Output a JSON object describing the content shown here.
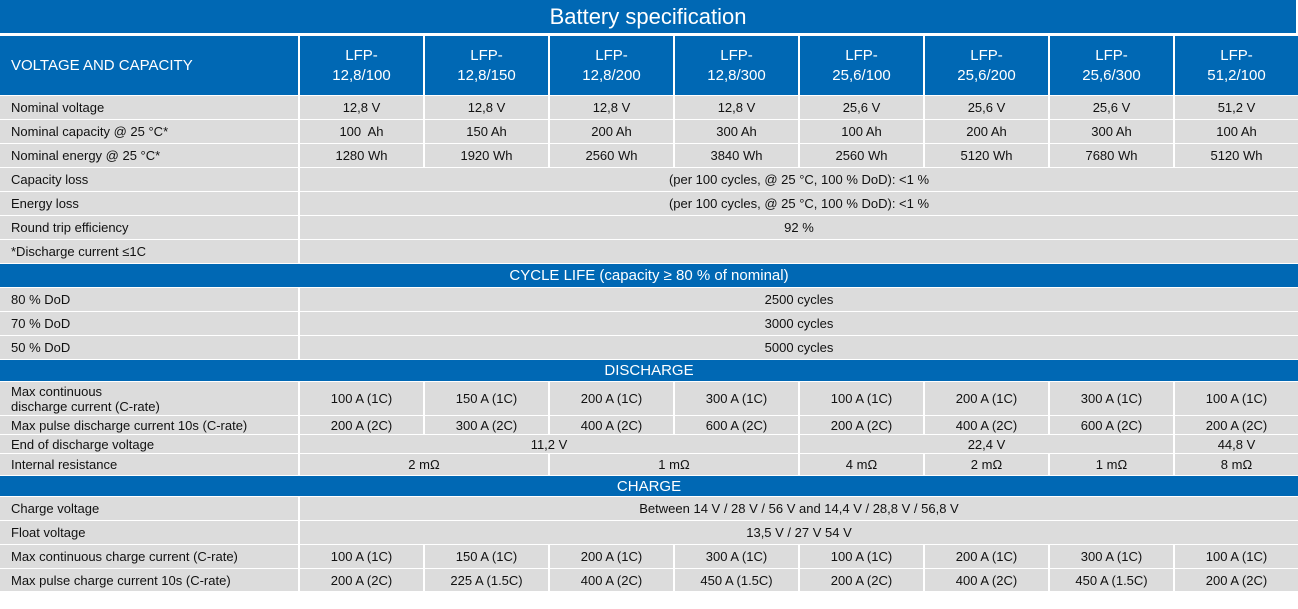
{
  "title": "Battery specification",
  "header": {
    "label": "VOLTAGE AND CAPACITY",
    "models_line1": [
      "LFP-",
      "LFP-",
      "LFP-",
      "LFP-",
      "LFP-",
      "LFP-",
      "LFP-",
      "LFP-"
    ],
    "models_line2": [
      "12,8/100",
      "12,8/150",
      "12,8/200",
      "12,8/300",
      "25,6/100",
      "25,6/200",
      "25,6/300",
      "51,2/100"
    ]
  },
  "voltage_capacity": {
    "nominal_voltage": {
      "label": "Nominal voltage",
      "values": [
        "12,8 V",
        "12,8 V",
        "12,8 V",
        "12,8 V",
        "25,6 V",
        "25,6 V",
        "25,6 V",
        "51,2 V"
      ]
    },
    "nominal_capacity": {
      "label": "Nominal capacity @ 25 °C*",
      "values": [
        "100  Ah",
        "150 Ah",
        "200 Ah",
        "300 Ah",
        "100 Ah",
        "200 Ah",
        "300 Ah",
        "100 Ah"
      ]
    },
    "nominal_energy": {
      "label": "Nominal energy @ 25 °C*",
      "values": [
        "1280 Wh",
        "1920 Wh",
        "2560 Wh",
        "3840 Wh",
        "2560 Wh",
        "5120 Wh",
        "7680 Wh",
        "5120 Wh"
      ]
    },
    "capacity_loss": {
      "label": "Capacity loss",
      "value": "(per 100 cycles, @ 25 °C, 100 % DoD): <1 %"
    },
    "energy_loss": {
      "label": "Energy loss",
      "value": "(per 100 cycles, @ 25 °C, 100 % DoD): <1 %"
    },
    "round_trip": {
      "label": "Round trip efficiency",
      "value": "92 %"
    },
    "footnote": "*Discharge current ≤1C"
  },
  "cycle_life": {
    "heading": "CYCLE LIFE (capacity ≥ 80 % of nominal)",
    "rows": [
      {
        "label": "80 % DoD",
        "value": "2500 cycles"
      },
      {
        "label": "70 % DoD",
        "value": "3000 cycles"
      },
      {
        "label": "50 % DoD",
        "value": "5000 cycles"
      }
    ]
  },
  "discharge": {
    "heading": "DISCHARGE",
    "max_continuous": {
      "label_line1": "Max continuous",
      "label_line2": "discharge current (C-rate)",
      "values": [
        "100 A (1C)",
        "150 A (1C)",
        "200 A (1C)",
        "300 A (1C)",
        "100 A (1C)",
        "200 A (1C)",
        "300 A (1C)",
        "100 A (1C)"
      ]
    },
    "max_pulse": {
      "label": "Max pulse discharge current 10s (C-rate)",
      "values": [
        "200 A (2C)",
        "300 A (2C)",
        "400 A (2C)",
        "600 A (2C)",
        "200 A (2C)",
        "400 A (2C)",
        "600 A (2C)",
        "200 A (2C)"
      ]
    },
    "end_voltage": {
      "label": "End of discharge voltage",
      "values": [
        "11,2 V",
        "22,4 V",
        "44,8 V"
      ]
    },
    "internal_resistance": {
      "label": "Internal resistance",
      "values": [
        "2 mΩ",
        "1 mΩ",
        "4 mΩ",
        "2 mΩ",
        "1 mΩ",
        "8 mΩ"
      ]
    }
  },
  "charge": {
    "heading": "CHARGE",
    "charge_voltage": {
      "label": "Charge voltage",
      "value": "Between 14 V / 28 V / 56 V and 14,4 V / 28,8 V / 56,8 V"
    },
    "float_voltage": {
      "label": "Float voltage",
      "value": "13,5 V / 27 V 54 V"
    },
    "max_continuous": {
      "label": "Max continuous charge current (C-rate)",
      "values": [
        "100 A (1C)",
        "150 A (1C)",
        "200 A (1C)",
        "300 A (1C)",
        "100 A (1C)",
        "200 A (1C)",
        "300 A (1C)",
        "100 A (1C)"
      ]
    },
    "max_pulse": {
      "label": "Max pulse charge current 10s (C-rate)",
      "values": [
        "200 A (2C)",
        "225 A (1.5C)",
        "400 A (2C)",
        "450 A (1.5C)",
        "200 A (2C)",
        "400 A (2C)",
        "450 A (1.5C)",
        "200 A (2C)"
      ]
    }
  },
  "colors": {
    "header_blue": "#0068b4",
    "cell_gray": "#dcdcdc",
    "text": "#111111"
  }
}
